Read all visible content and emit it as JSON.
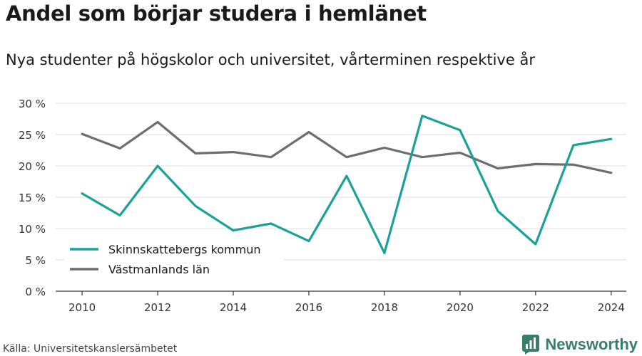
{
  "title": "Andel som börjar studera i hemlänet",
  "subtitle": "Nya studenter på högskolor och universitet, vårterminen respektive år",
  "source": "Källa: Universitetskanslersämbetet",
  "brand": {
    "name": "Newsworthy",
    "color": "#3a7d6a"
  },
  "chart_data": {
    "type": "line",
    "x": [
      2010,
      2011,
      2012,
      2013,
      2014,
      2015,
      2016,
      2017,
      2018,
      2019,
      2020,
      2021,
      2022,
      2023,
      2024
    ],
    "series": [
      {
        "name": "Skinnskattebergs kommun",
        "color": "#1aa198",
        "values": [
          15.6,
          12.1,
          20.0,
          13.6,
          9.7,
          10.8,
          8.0,
          18.4,
          6.1,
          28.0,
          25.7,
          12.8,
          7.5,
          23.3,
          24.3
        ]
      },
      {
        "name": "Västmanlands län",
        "color": "#6d6d72",
        "values": [
          25.1,
          22.8,
          27.0,
          22.0,
          22.2,
          21.4,
          25.4,
          21.4,
          22.9,
          21.4,
          22.1,
          19.6,
          20.3,
          20.2,
          18.9
        ]
      }
    ],
    "ylim": [
      0,
      30
    ],
    "yticks": [
      0,
      5,
      10,
      15,
      20,
      25,
      30
    ],
    "ytick_labels": [
      "0 %",
      "5 %",
      "10 %",
      "15 %",
      "20 %",
      "25 %",
      "30 %"
    ],
    "xticks": [
      2010,
      2012,
      2014,
      2016,
      2018,
      2020,
      2022,
      2024
    ],
    "xtick_labels": [
      "2010",
      "2012",
      "2014",
      "2016",
      "2018",
      "2020",
      "2022",
      "2024"
    ],
    "grid": true,
    "legend_position": "lower-left"
  }
}
